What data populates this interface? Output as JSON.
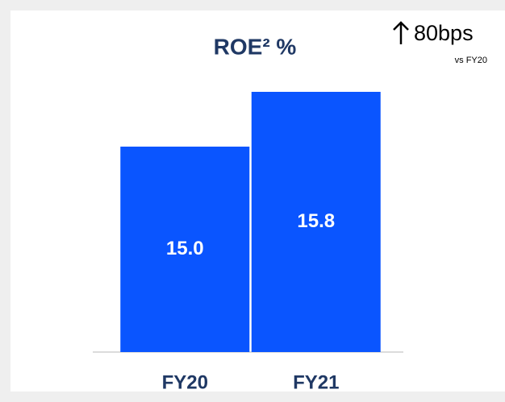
{
  "chart_data": {
    "type": "bar",
    "title": "ROE² %",
    "categories": [
      "FY20",
      "FY21"
    ],
    "values": [
      15.0,
      15.8
    ],
    "value_labels": [
      "15.0",
      "15.8"
    ],
    "color": "#0a55ff",
    "ylim": [
      12,
      16
    ],
    "annotations": [
      "80bps",
      "vs FY20"
    ]
  }
}
